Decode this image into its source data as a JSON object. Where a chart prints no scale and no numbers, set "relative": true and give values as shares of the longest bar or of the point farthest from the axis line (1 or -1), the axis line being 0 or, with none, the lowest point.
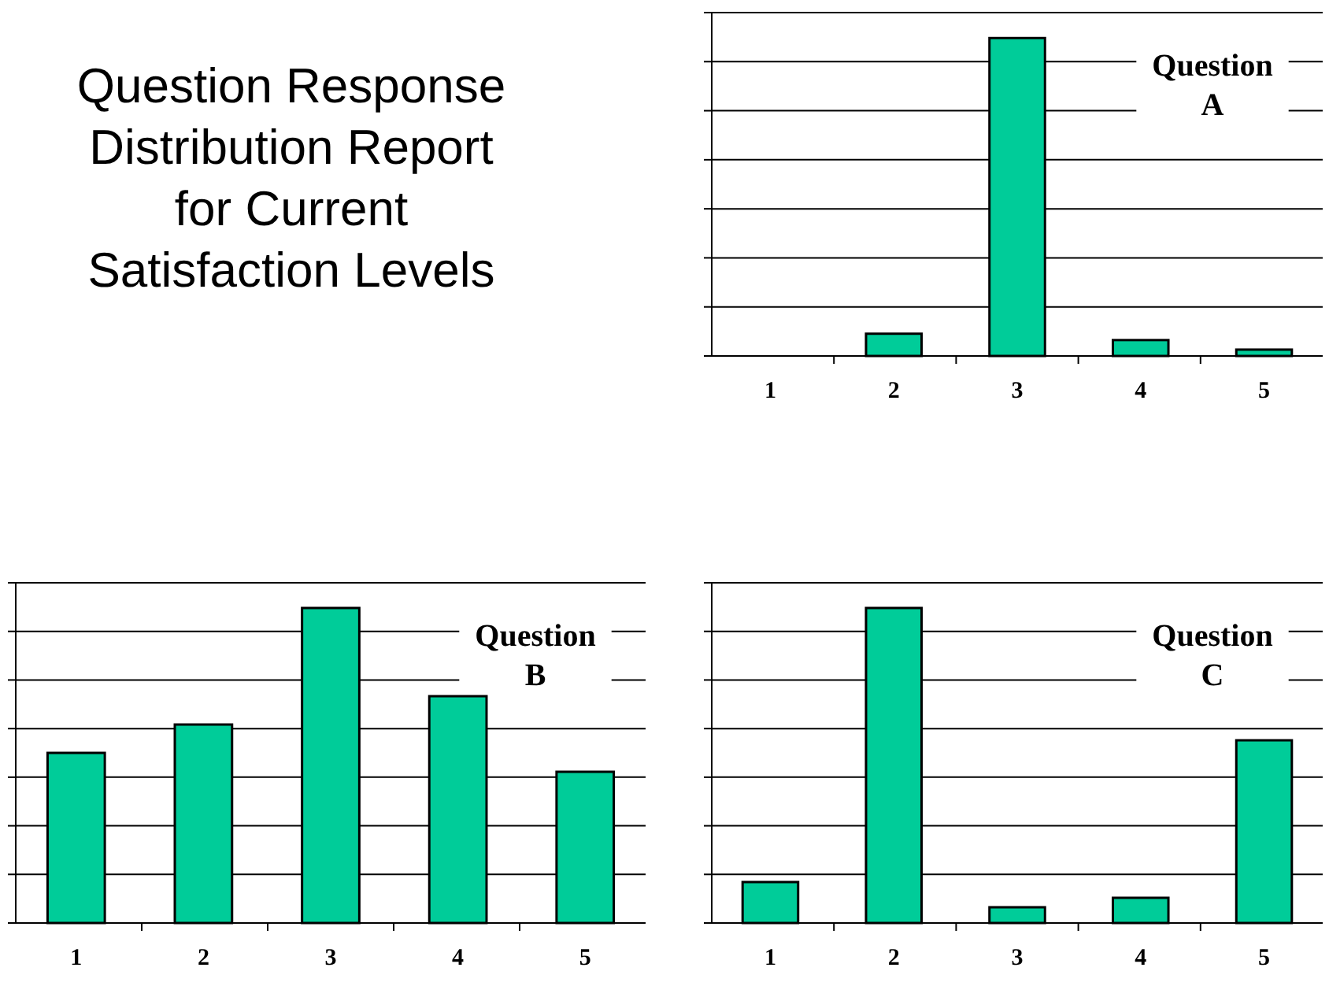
{
  "chart_data": [
    {
      "type": "other",
      "title": "Question Response Distribution Report for Current Satisfaction Levels"
    },
    {
      "type": "bar",
      "title": "Question A",
      "categories": [
        "1",
        "2",
        "3",
        "4",
        "5"
      ],
      "values": [
        0,
        0.07,
        1,
        0.05,
        0.02
      ],
      "color": "#00cc99",
      "relative": true,
      "grid": "y"
    },
    {
      "type": "bar",
      "title": "Question B",
      "categories": [
        "1",
        "2",
        "3",
        "4",
        "5"
      ],
      "values": [
        0.54,
        0.63,
        1,
        0.72,
        0.48
      ],
      "color": "#00cc99",
      "relative": true,
      "grid": "y"
    },
    {
      "type": "bar",
      "title": "Question C",
      "categories": [
        "1",
        "2",
        "3",
        "4",
        "5"
      ],
      "values": [
        0.13,
        1,
        0.05,
        0.08,
        0.58
      ],
      "color": "#00cc99",
      "relative": true,
      "grid": "y"
    }
  ]
}
